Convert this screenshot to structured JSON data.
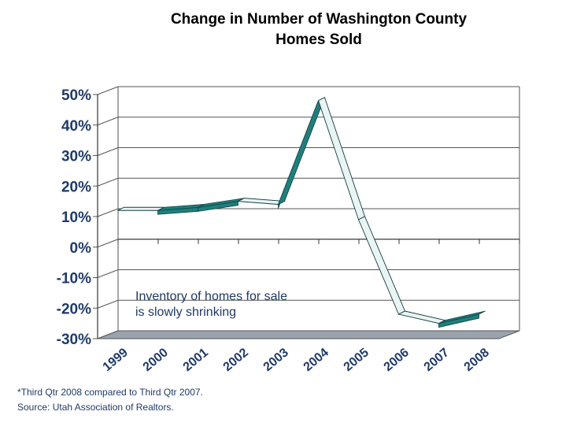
{
  "chart_data": {
    "type": "line",
    "style": "3d-ribbon",
    "title_lines": [
      "Change in Number  of Washington County",
      "Homes Sold"
    ],
    "categories": [
      "1999",
      "2000",
      "2001",
      "2002",
      "2003",
      "2004",
      "2005",
      "2006",
      "2007",
      "2008"
    ],
    "series": [
      {
        "name": "Change in Number of Homes Sold",
        "values": [
          12,
          12,
          13,
          15,
          14,
          48,
          9,
          -22,
          -25,
          -22
        ]
      }
    ],
    "yticks": [
      "50%",
      "40%",
      "30%",
      "20%",
      "10%",
      "0%",
      "-10%",
      "-20%",
      "-30%"
    ],
    "ylim": [
      -30,
      50
    ],
    "ytick_step": 10,
    "grid": true,
    "annotation_lines": [
      "Inventory of homes for sale",
      "is slowly shrinking"
    ],
    "colors": {
      "ribbon_top": "#eaf4f4",
      "ribbon_side": "#1f7f7d",
      "text": "#1f3a68",
      "floor": "#9aa3ad",
      "grid": "#555555"
    }
  },
  "footnotes": {
    "line1": "*Third Qtr 2008 compared to Third Qtr 2007.",
    "line2": "Source: Utah Association of Realtors."
  }
}
